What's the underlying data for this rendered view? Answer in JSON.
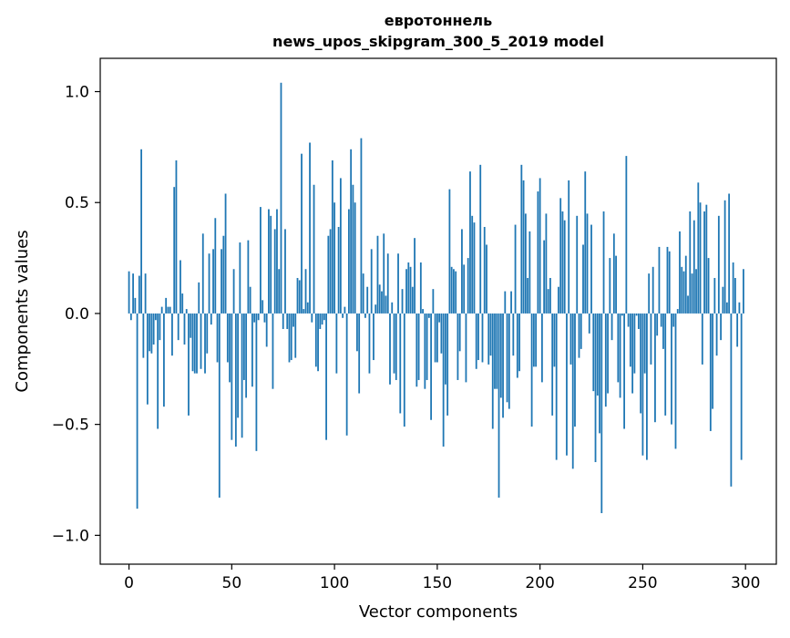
{
  "chart_data": {
    "type": "bar",
    "title": [
      "евротоннель",
      "news_upos_skipgram_300_5_2019 model"
    ],
    "xlabel": "Vector components",
    "ylabel": "Components values",
    "xlim": [
      -14,
      315
    ],
    "ylim": [
      -1.13,
      1.15
    ],
    "xticks": [
      0,
      50,
      100,
      150,
      200,
      250,
      300
    ],
    "xtick_labels": [
      "0",
      "50",
      "100",
      "150",
      "200",
      "250",
      "300"
    ],
    "yticks": [
      -1.0,
      -0.5,
      0.0,
      0.5,
      1.0
    ],
    "ytick_labels": [
      "−1.0",
      "−0.5",
      "0.0",
      "0.5",
      "1.0"
    ],
    "bar_color": "#1f77b4",
    "grid": false,
    "legend": false,
    "x_start": 0,
    "values": [
      0.19,
      -0.03,
      0.18,
      0.07,
      -0.88,
      0.17,
      0.74,
      -0.2,
      0.18,
      -0.41,
      -0.17,
      -0.18,
      -0.14,
      -0.03,
      -0.52,
      -0.12,
      0.03,
      -0.42,
      0.07,
      0.03,
      0.03,
      -0.19,
      0.57,
      0.69,
      -0.12,
      0.24,
      0.09,
      -0.14,
      0.02,
      -0.46,
      -0.11,
      -0.26,
      -0.27,
      -0.27,
      0.14,
      -0.25,
      0.36,
      -0.27,
      -0.18,
      0.27,
      -0.05,
      0.29,
      0.43,
      -0.22,
      -0.83,
      0.29,
      0.35,
      0.54,
      -0.22,
      -0.31,
      -0.57,
      0.2,
      -0.6,
      -0.47,
      0.32,
      -0.56,
      -0.3,
      -0.38,
      0.33,
      0.12,
      -0.33,
      -0.04,
      -0.62,
      -0.03,
      0.48,
      0.06,
      -0.04,
      -0.15,
      0.47,
      0.44,
      -0.34,
      0.38,
      0.47,
      0.2,
      1.04,
      -0.07,
      0.38,
      -0.07,
      -0.22,
      -0.21,
      -0.06,
      -0.2,
      0.16,
      0.15,
      0.72,
      0.02,
      0.2,
      0.05,
      0.77,
      -0.04,
      0.58,
      -0.24,
      -0.26,
      -0.07,
      -0.05,
      -0.03,
      -0.57,
      0.35,
      0.38,
      0.69,
      0.5,
      -0.27,
      0.39,
      0.61,
      -0.02,
      0.03,
      -0.55,
      0.47,
      0.74,
      0.58,
      0.5,
      -0.17,
      -0.36,
      0.79,
      0.18,
      -0.02,
      0.12,
      -0.27,
      0.29,
      -0.21,
      0.04,
      0.35,
      0.13,
      0.1,
      0.36,
      0.08,
      0.27,
      -0.32,
      0.05,
      -0.27,
      -0.3,
      0.27,
      -0.45,
      0.11,
      -0.51,
      0.2,
      0.23,
      0.21,
      0.12,
      0.34,
      -0.33,
      -0.3,
      0.23,
      0.02,
      -0.34,
      -0.3,
      -0.02,
      -0.48,
      0.11,
      -0.22,
      -0.22,
      -0.04,
      -0.18,
      -0.6,
      -0.32,
      -0.46,
      0.56,
      0.21,
      0.2,
      0.19,
      -0.3,
      -0.17,
      0.38,
      0.22,
      -0.31,
      0.25,
      0.64,
      0.44,
      0.41,
      -0.25,
      -0.21,
      0.67,
      -0.22,
      0.39,
      0.31,
      -0.23,
      -0.19,
      -0.52,
      -0.34,
      -0.34,
      -0.83,
      -0.38,
      -0.47,
      0.1,
      -0.4,
      -0.43,
      0.1,
      -0.19,
      0.4,
      -0.29,
      -0.26,
      0.67,
      0.6,
      0.45,
      0.16,
      0.37,
      -0.51,
      -0.24,
      -0.24,
      0.55,
      0.61,
      -0.31,
      0.33,
      0.45,
      0.11,
      0.16,
      -0.46,
      -0.24,
      -0.66,
      0.12,
      0.52,
      0.46,
      0.42,
      -0.64,
      0.6,
      -0.23,
      -0.7,
      -0.51,
      0.44,
      -0.2,
      -0.16,
      0.31,
      0.64,
      0.45,
      -0.09,
      0.4,
      -0.35,
      -0.67,
      -0.37,
      -0.54,
      -0.9,
      0.46,
      -0.42,
      -0.36,
      0.25,
      -0.12,
      0.36,
      0.26,
      -0.31,
      -0.38,
      -0.01,
      -0.52,
      0.71,
      -0.06,
      -0.24,
      -0.36,
      -0.27,
      -0.01,
      -0.07,
      -0.45,
      -0.64,
      -0.27,
      -0.66,
      0.18,
      -0.23,
      0.21,
      -0.49,
      -0.1,
      0.3,
      -0.06,
      -0.16,
      -0.46,
      0.3,
      0.28,
      -0.5,
      -0.06,
      -0.61,
      0.02,
      0.37,
      0.21,
      0.19,
      0.26,
      0.08,
      0.46,
      0.18,
      0.42,
      0.2,
      0.59,
      0.5,
      -0.23,
      0.46,
      0.49,
      0.25,
      -0.53,
      -0.43,
      0.16,
      -0.19,
      0.44,
      -0.12,
      0.12,
      0.51,
      0.05,
      0.54,
      -0.78,
      0.23,
      0.16,
      -0.15,
      0.05,
      -0.66,
      0.2
    ]
  }
}
